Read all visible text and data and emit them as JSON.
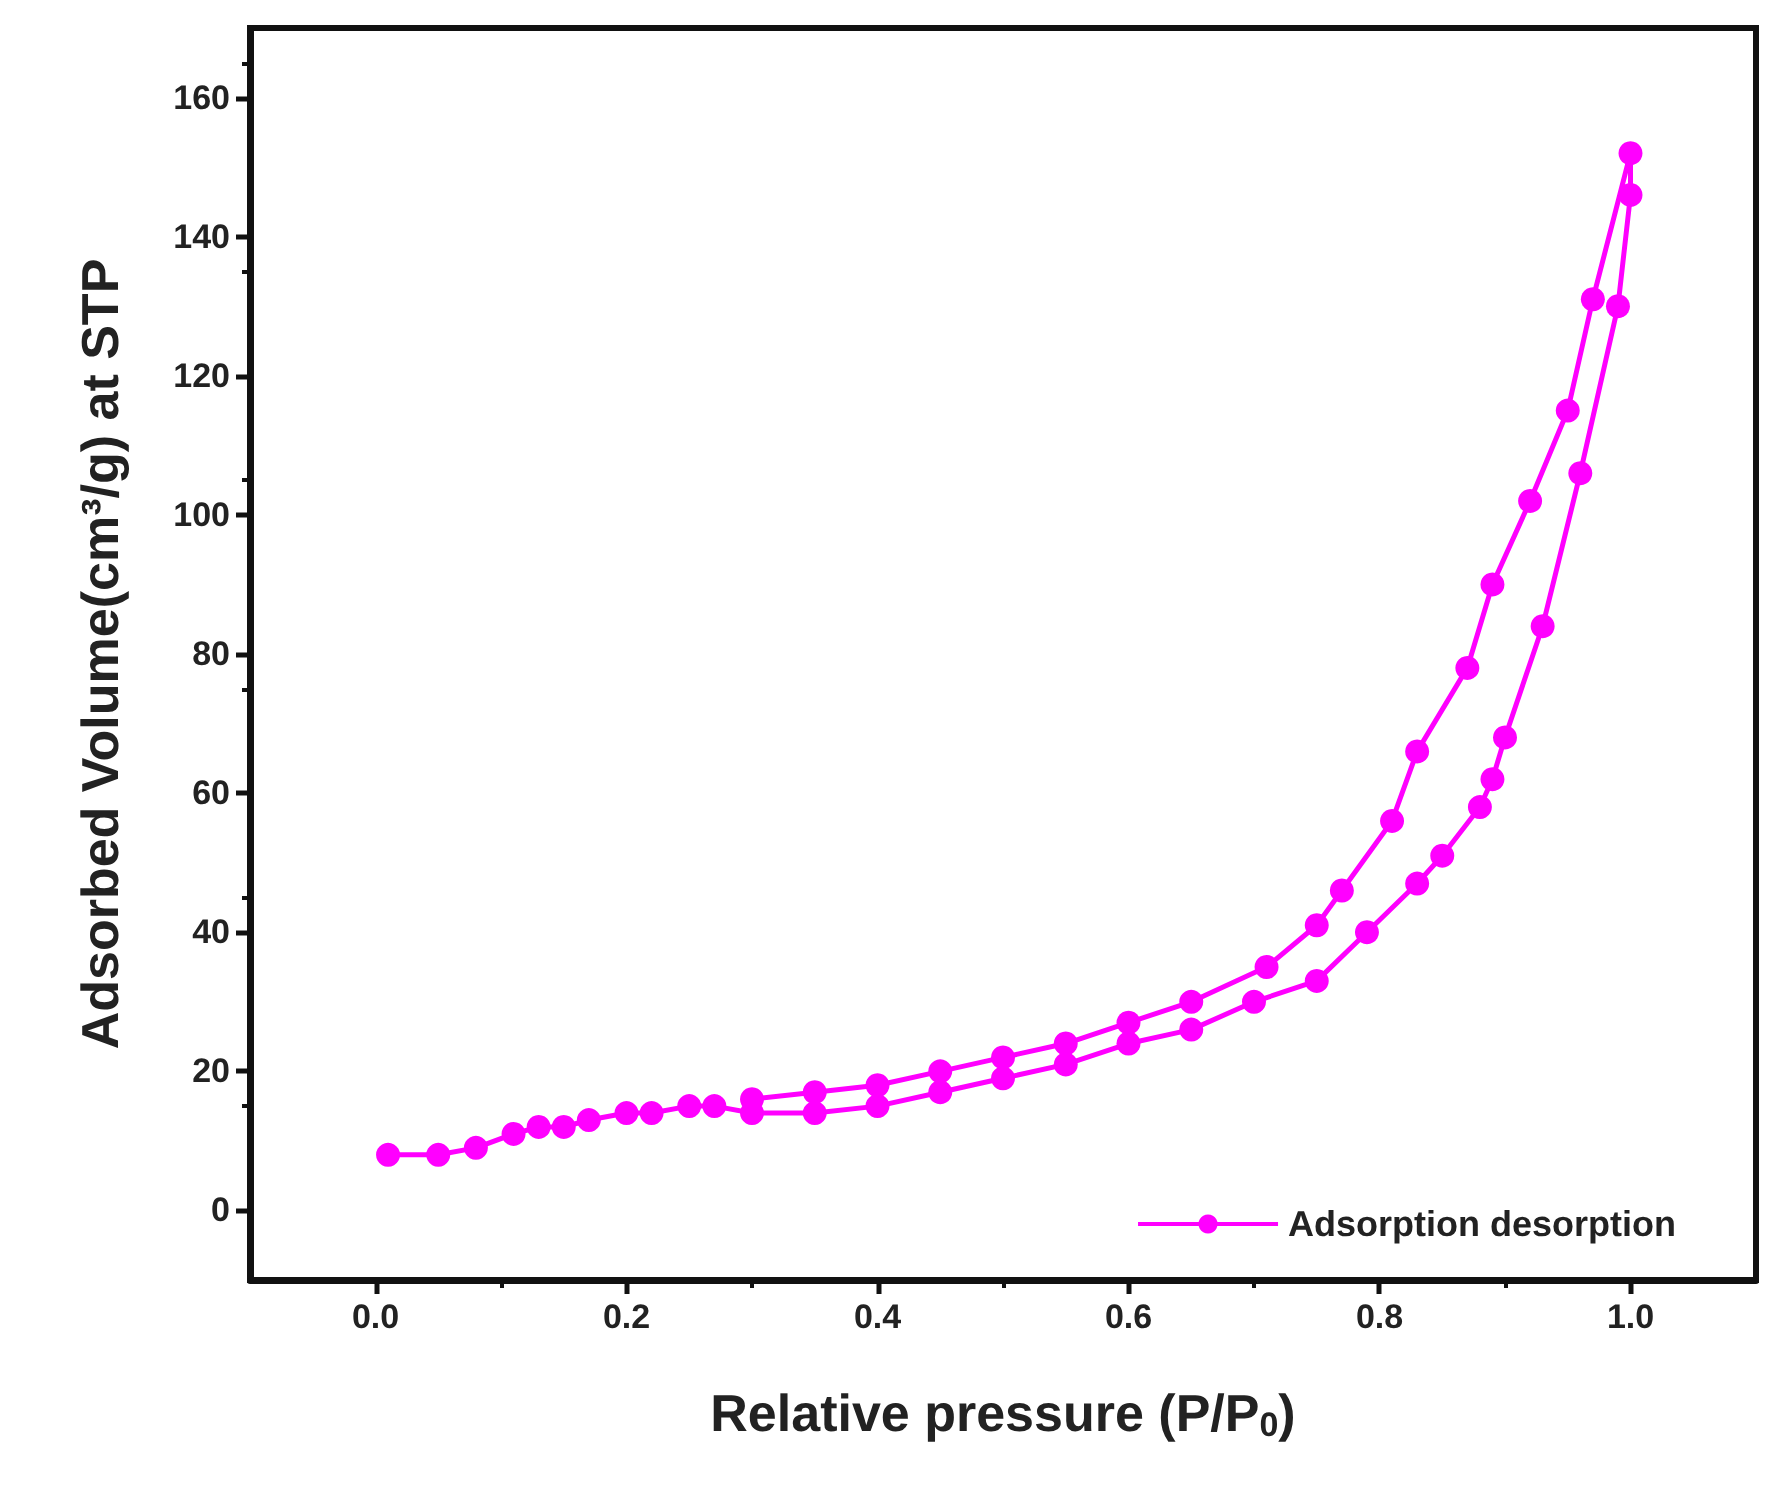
{
  "chart_data": {
    "type": "line",
    "xlabel": "Relative pressure (P/P$_{0}$)",
    "ylabel": "Adsorbed Volume(cm³/g) at STP",
    "xlim": [
      -0.1,
      1.1
    ],
    "xticks": [
      {
        "value": 0,
        "label": "0.0"
      },
      {
        "value": 0.2,
        "label": "0.2"
      },
      {
        "value": 0.4,
        "label": "0.4"
      },
      {
        "value": 0.6,
        "label": "0.6"
      },
      {
        "value": 0.8,
        "label": "0.8"
      },
      {
        "value": 1,
        "label": "1.0"
      }
    ],
    "ylim": [
      -10,
      170
    ],
    "yticks": [
      0,
      20,
      40,
      60,
      80,
      100,
      120,
      140,
      160
    ],
    "grid": false,
    "legend": "bottom right",
    "marker": "circle",
    "line_style": "solid",
    "series": [
      {
        "name": "Adsorption desorption",
        "color": "#ff00ff",
        "x": [
          0.01,
          0.05,
          0.08,
          0.11,
          0.13,
          0.15,
          0.17,
          0.2,
          0.22,
          0.25,
          0.27,
          0.3,
          0.35,
          0.4,
          0.45,
          0.5,
          0.55,
          0.6,
          0.65,
          0.7,
          0.75,
          0.79,
          0.83,
          0.85,
          0.88,
          0.89,
          0.9,
          0.93,
          0.96,
          0.99,
          1.0,
          1.0,
          0.97,
          0.95,
          0.92,
          0.89,
          0.87,
          0.83,
          0.81,
          0.77,
          0.75,
          0.71,
          0.65,
          0.6,
          0.55,
          0.5,
          0.45,
          0.4,
          0.35,
          0.3
        ],
        "values": [
          8,
          8,
          9,
          11,
          12,
          12,
          13,
          14,
          14,
          15,
          15,
          14,
          14,
          15,
          17,
          19,
          21,
          24,
          26,
          30,
          33,
          40,
          47,
          51,
          58,
          62,
          68,
          84,
          106,
          130,
          146,
          152,
          131,
          115,
          102,
          90,
          78,
          66,
          56,
          46,
          41,
          35,
          30,
          27,
          24,
          22,
          20,
          18,
          17,
          16
        ]
      }
    ]
  }
}
